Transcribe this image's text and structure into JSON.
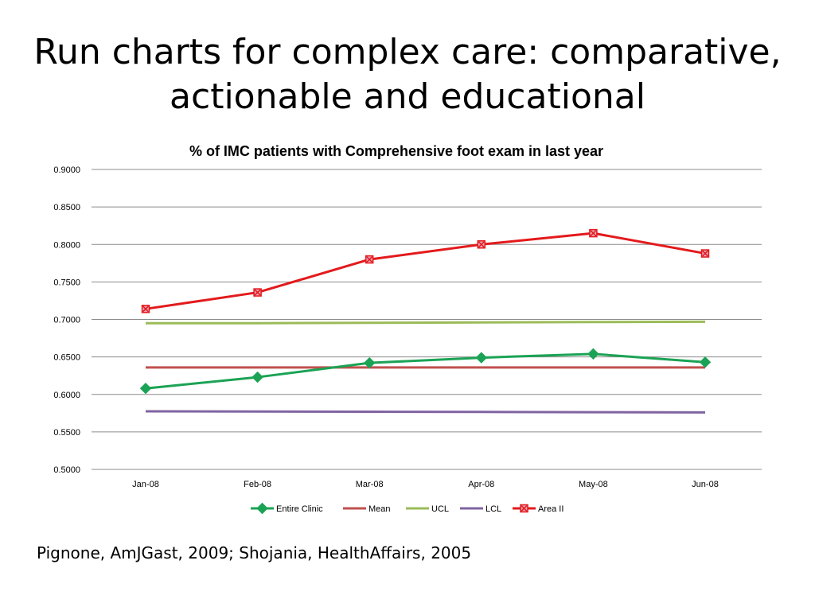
{
  "slide": {
    "title_line1": "Run charts for complex care:  comparative,",
    "title_line2": "actionable and educational",
    "citation": "Pignone, AmJGast, 2009; Shojania, HealthAffairs, 2005"
  },
  "chart_data": {
    "type": "line",
    "title": "% of IMC patients with Comprehensive foot exam in last year",
    "categories": [
      "Jan-08",
      "Feb-08",
      "Mar-08",
      "Apr-08",
      "May-08",
      "Jun-08"
    ],
    "ylim": [
      0.5,
      0.9
    ],
    "yticks": [
      "0.9000",
      "0.8500",
      "0.8000",
      "0.7500",
      "0.7000",
      "0.6500",
      "0.6000",
      "0.5500",
      "0.5000"
    ],
    "ytick_values": [
      0.9,
      0.85,
      0.8,
      0.75,
      0.7,
      0.65,
      0.6,
      0.55,
      0.5
    ],
    "grid": true,
    "legend_position": "bottom",
    "series": [
      {
        "name": "Entire Clinic",
        "color": "#1ba355",
        "marker": "diamond",
        "values": [
          0.608,
          0.623,
          0.642,
          0.649,
          0.654,
          0.643
        ]
      },
      {
        "name": "Mean",
        "color": "#c0504d",
        "marker": "none",
        "values": [
          0.636,
          0.636,
          0.636,
          0.636,
          0.636,
          0.636
        ]
      },
      {
        "name": "UCL",
        "color": "#9bbb59",
        "marker": "none",
        "values": [
          0.695,
          0.695,
          0.6955,
          0.696,
          0.6965,
          0.697
        ]
      },
      {
        "name": "LCL",
        "color": "#8064a2",
        "marker": "none",
        "values": [
          0.5775,
          0.5772,
          0.5769,
          0.5766,
          0.5763,
          0.576
        ]
      },
      {
        "name": "Area II",
        "color": "#e31a1c",
        "marker": "square-x",
        "values": [
          0.714,
          0.736,
          0.78,
          0.8,
          0.815,
          0.788
        ]
      }
    ]
  }
}
